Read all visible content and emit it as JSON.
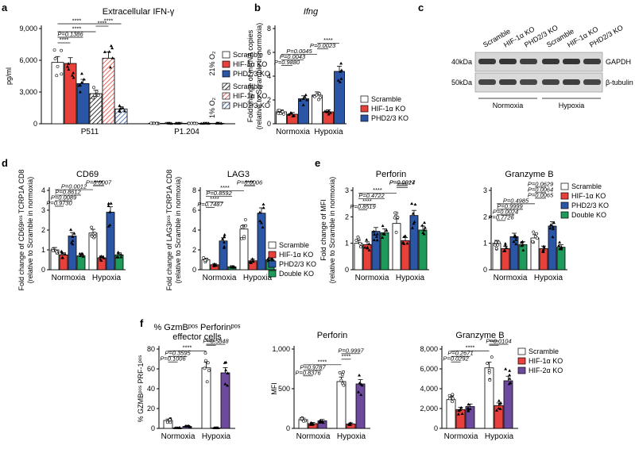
{
  "figure": {
    "panel_letters": [
      "a",
      "b",
      "c",
      "d",
      "e",
      "f"
    ],
    "blot": {
      "lanes": [
        "Scramble",
        "HIF-1α KO",
        "PHD2/3 KO",
        "Scramble",
        "HIF-1α KO",
        "PHD2/3 KO"
      ],
      "markers": [
        "40kDa",
        "50kDa"
      ],
      "bands": [
        "GAPDH",
        "β-tubulin"
      ],
      "groups": [
        "Normoxia",
        "Hypoxia"
      ]
    }
  },
  "colors": {
    "scramble": "#ffffff",
    "hif1a": "#e8403a",
    "phd": "#2b56a6",
    "double": "#1e9a5a",
    "hif2a": "#6e4a9e"
  },
  "chart_data": [
    {
      "id": "a",
      "type": "bar",
      "title": "Extracellular IFN-γ",
      "ylabel": "pg/ml",
      "xlabel": "",
      "ylim": [
        0,
        9000
      ],
      "yticks": [
        "0",
        "3,000",
        "6,000",
        "9,000"
      ],
      "categories": [
        "P511",
        "P1.204"
      ],
      "side_labels": [
        "21% O₂",
        "1% O₂"
      ],
      "series": [
        {
          "name": "Scramble",
          "condition": "21% O₂",
          "values": [
            5800,
            40
          ]
        },
        {
          "name": "HIF-1α KO",
          "condition": "21% O₂",
          "values": [
            5700,
            40
          ]
        },
        {
          "name": "PHD2/3 KO",
          "condition": "21% O₂",
          "values": [
            3800,
            40
          ]
        },
        {
          "name": "Scramble",
          "condition": "1% O₂",
          "values": [
            2850,
            40
          ]
        },
        {
          "name": "HIF-1α KO",
          "condition": "1% O₂",
          "values": [
            6200,
            40
          ]
        },
        {
          "name": "PHD2/3 KO",
          "condition": "1% O₂",
          "values": [
            1400,
            40
          ]
        }
      ],
      "significance": [
        "****",
        "P=0.1386",
        "****",
        "****",
        "****",
        "****"
      ]
    },
    {
      "id": "b",
      "type": "bar",
      "title": "Ifng",
      "ylabel": "Fold change of mRNA copies",
      "ylabel2": "(relative to Scramble in normoxia)",
      "ylim": [
        0,
        8
      ],
      "yticks": [
        "0",
        "2",
        "4",
        "6",
        "8"
      ],
      "categories": [
        "Normoxia",
        "Hypoxia"
      ],
      "series": [
        {
          "name": "Scramble",
          "values": [
            1.0,
            2.4
          ]
        },
        {
          "name": "HIF-1α KO",
          "values": [
            0.8,
            1.0
          ]
        },
        {
          "name": "PHD2/3 KO",
          "values": [
            2.1,
            4.4
          ]
        }
      ],
      "significance": [
        "P=0.9880",
        "P=0.0043",
        "P=0.0045",
        "P=0.0023",
        "****"
      ]
    },
    {
      "id": "d1",
      "type": "bar",
      "title": "CD69",
      "ylabel": "Fold change of CD69ᵖᵒˢ TCRP1A CD8",
      "ylabel2": "(relative to Scramble in normoxia)",
      "ylim": [
        0,
        4
      ],
      "yticks": [
        "0",
        "1",
        "2",
        "3",
        "4"
      ],
      "categories": [
        "Normoxia",
        "Hypoxia"
      ],
      "series": [
        {
          "name": "Scramble",
          "values": [
            1.0,
            1.85
          ]
        },
        {
          "name": "HIF-1α KO",
          "values": [
            0.75,
            0.6
          ]
        },
        {
          "name": "PHD2/3 KO",
          "values": [
            1.7,
            2.9
          ]
        },
        {
          "name": "Double KO",
          "values": [
            0.7,
            0.75
          ]
        }
      ],
      "significance": [
        "P=0.9730",
        "P=0.0089",
        "P=0.8612",
        "P=0.0012",
        "****",
        "P=0.0007",
        "****"
      ]
    },
    {
      "id": "d2",
      "type": "bar",
      "title": "LAG3",
      "ylabel": "Fold change of LAG3ᵖᵒˢ TCRP1A CD8",
      "ylabel2": "(relative to Scramble in normoxia)",
      "ylim": [
        0,
        8
      ],
      "yticks": [
        "0",
        "2",
        "4",
        "6",
        "8"
      ],
      "categories": [
        "Normoxia",
        "Hypoxia"
      ],
      "series": [
        {
          "name": "Scramble",
          "values": [
            1.0,
            4.1
          ]
        },
        {
          "name": "HIF-1α KO",
          "values": [
            0.5,
            0.9
          ]
        },
        {
          "name": "PHD2/3 KO",
          "values": [
            2.9,
            5.7
          ]
        },
        {
          "name": "Double KO",
          "values": [
            0.3,
            1.0
          ]
        }
      ],
      "significance": [
        "P=0.7487",
        "****",
        "P=0.8592",
        "****",
        "****",
        "P=0.0006",
        "****"
      ]
    },
    {
      "id": "e1",
      "type": "bar",
      "title": "Perforin",
      "ylabel": "Fold change of MFI",
      "ylabel2": "(relative to Scramble in normoxia)",
      "ylim": [
        0,
        3
      ],
      "yticks": [
        "0",
        "1",
        "2",
        "3"
      ],
      "categories": [
        "Normoxia",
        "Hypoxia"
      ],
      "series": [
        {
          "name": "Scramble",
          "values": [
            1.0,
            1.75
          ]
        },
        {
          "name": "HIF-1α KO",
          "values": [
            0.95,
            1.1
          ]
        },
        {
          "name": "PHD2/3 KO",
          "values": [
            1.45,
            2.05
          ]
        },
        {
          "name": "Double KO",
          "values": [
            1.4,
            1.5
          ]
        }
      ],
      "significance": [
        "P=0.8519",
        "****",
        "P=0.4722",
        "****",
        "****",
        "P=0.0024",
        "P=0.0217"
      ]
    },
    {
      "id": "e2",
      "type": "bar",
      "title": "Granzyme B",
      "ylabel": "",
      "ylim": [
        0,
        3
      ],
      "yticks": [
        "0",
        "1",
        "2",
        "3"
      ],
      "categories": [
        "Normoxia",
        "Hypoxia"
      ],
      "series": [
        {
          "name": "Scramble",
          "values": [
            1.0,
            1.2
          ]
        },
        {
          "name": "HIF-1α KO",
          "values": [
            0.8,
            0.8
          ]
        },
        {
          "name": "PHD2/3 KO",
          "values": [
            1.25,
            1.65
          ]
        },
        {
          "name": "Double KO",
          "values": [
            0.95,
            0.85
          ]
        }
      ],
      "significance": [
        "P=0.7726",
        "P=0.0024",
        "P=0.9999",
        "P=0.4985",
        "P=0.0065",
        "P=0.0064",
        "P=0.0629"
      ]
    },
    {
      "id": "f1",
      "type": "bar",
      "title": "% GzmBᵖᵒˢ Perforinᵖᵒˢ",
      "title2": "effector cells",
      "ylabel": "% GZMBᵖᵒˢ PRF-1ᵖᵒˢ",
      "ylim": [
        0,
        80
      ],
      "yticks": [
        "0",
        "20",
        "40",
        "60",
        "80"
      ],
      "categories": [
        "Normoxia",
        "Hypoxia"
      ],
      "series": [
        {
          "name": "Scramble",
          "values": [
            8,
            61
          ]
        },
        {
          "name": "HIF-1α KO",
          "values": [
            0.5,
            0.5
          ]
        },
        {
          "name": "HIF-2α KO",
          "values": [
            2,
            56
          ]
        }
      ],
      "significance": [
        "P=0.1006",
        "P=0.3595",
        "****",
        "****",
        "P=0.5848"
      ]
    },
    {
      "id": "f2",
      "type": "bar",
      "title": "Perforin",
      "ylabel": "MFI",
      "ylim": [
        0,
        1000
      ],
      "yticks": [
        "0",
        "500",
        "1,000"
      ],
      "categories": [
        "Normoxia",
        "Hypoxia"
      ],
      "series": [
        {
          "name": "Scramble",
          "values": [
            110,
            590
          ]
        },
        {
          "name": "HIF-1α KO",
          "values": [
            60,
            55
          ]
        },
        {
          "name": "HIF-2α KO",
          "values": [
            95,
            560
          ]
        }
      ],
      "significance": [
        "P=0.8376",
        "P=0.9787",
        "****",
        "****",
        "P=0.9997"
      ]
    },
    {
      "id": "f3",
      "type": "bar",
      "title": "Granzyme B",
      "ylabel": "",
      "ylim": [
        0,
        8000
      ],
      "yticks": [
        "0",
        "2,000",
        "4,000",
        "6,000",
        "8,000"
      ],
      "categories": [
        "Normoxia",
        "Hypoxia"
      ],
      "series": [
        {
          "name": "Scramble",
          "values": [
            2900,
            6100
          ]
        },
        {
          "name": "HIF-1α KO",
          "values": [
            1900,
            2300
          ]
        },
        {
          "name": "HIF-2α KO",
          "values": [
            2200,
            4800
          ]
        }
      ],
      "significance": [
        "P=0.0292",
        "P=0.2671",
        "****",
        "****",
        "P=0.0104"
      ]
    }
  ]
}
